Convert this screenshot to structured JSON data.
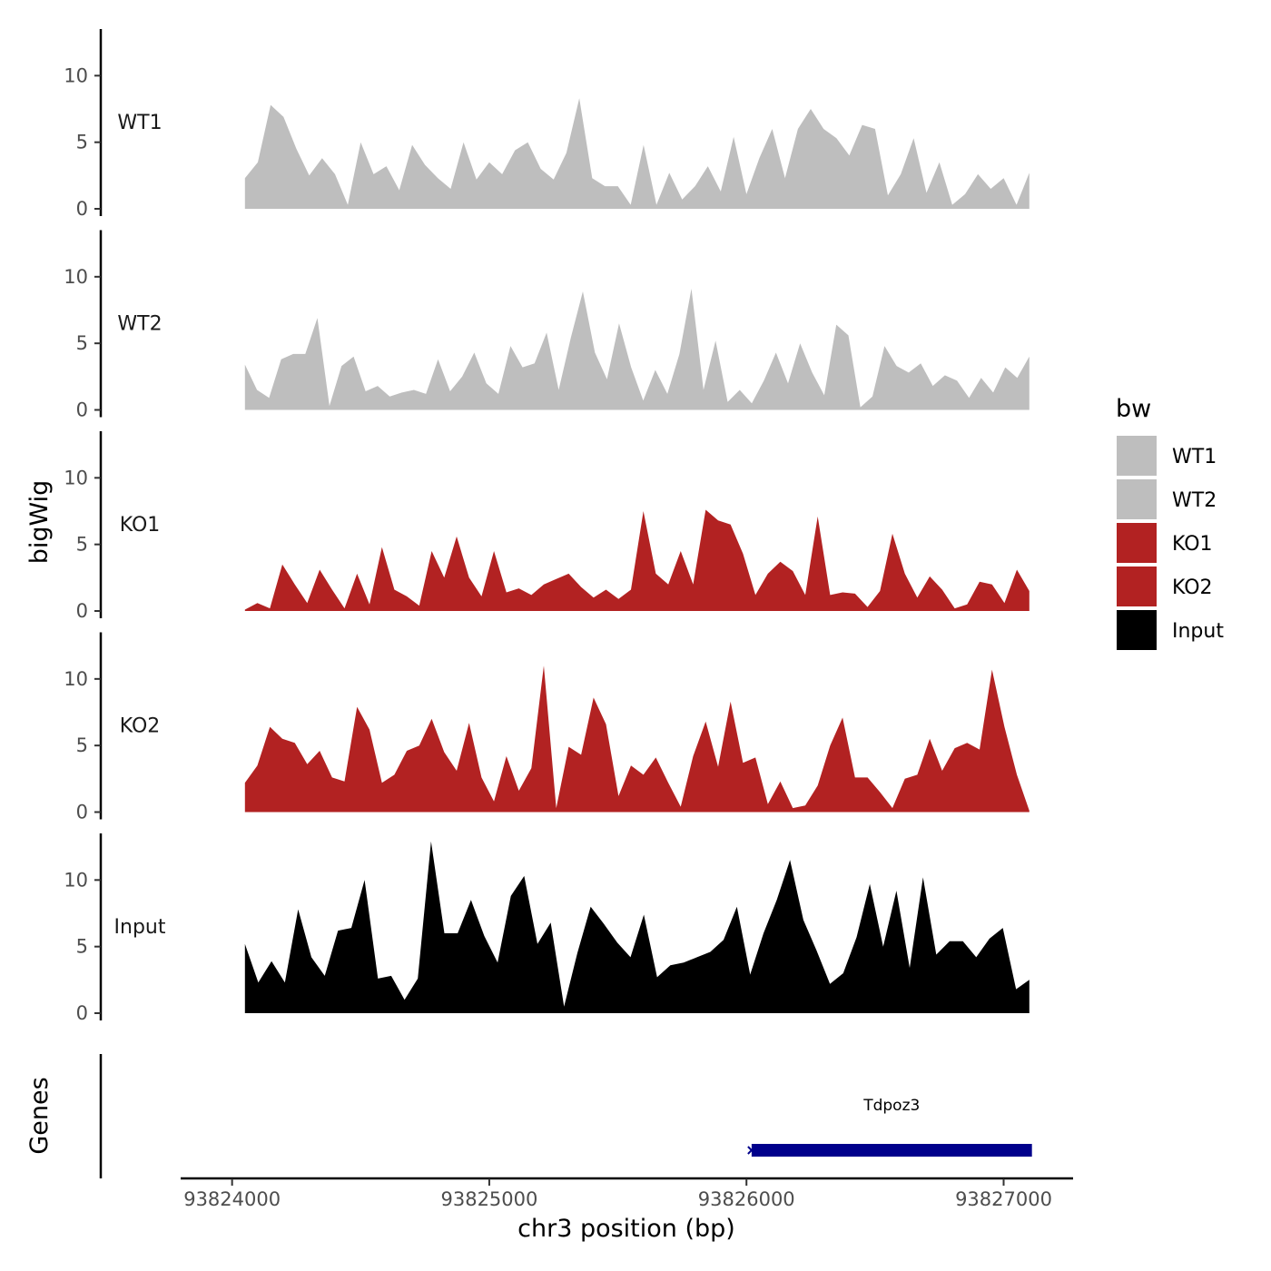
{
  "chart_data": {
    "type": "area",
    "title": "",
    "xlabel": "chr3 position (bp)",
    "ylabel": "bigWig",
    "genes_label": "Genes",
    "xlim": [
      93823800,
      93827270
    ],
    "ylim": [
      0,
      13.5
    ],
    "x_ticks": [
      93824000,
      93825000,
      93826000,
      93827000
    ],
    "x_tick_labels": [
      "93824000",
      "93825000",
      "93826000",
      "93827000"
    ],
    "y_ticks": [
      0,
      5,
      10
    ],
    "y_tick_labels": [
      "0",
      "5",
      "10"
    ],
    "x_start": 93824050,
    "x_end": 93827100,
    "legend": {
      "title": "bw",
      "position": "right",
      "entries": [
        {
          "label": "WT1",
          "color": "#bebebe"
        },
        {
          "label": "WT2",
          "color": "#bebebe"
        },
        {
          "label": "KO1",
          "color": "#b22222"
        },
        {
          "label": "KO2",
          "color": "#b22222"
        },
        {
          "label": "Input",
          "color": "#000000"
        }
      ]
    },
    "series": [
      {
        "name": "WT1",
        "color": "#bebebe",
        "values": [
          2.3,
          3.5,
          7.8,
          6.9,
          4.5,
          2.5,
          3.8,
          2.6,
          0.3,
          5,
          2.6,
          3.2,
          1.4,
          4.8,
          3.3,
          2.3,
          1.5,
          5,
          2.2,
          3.5,
          2.6,
          4.4,
          5,
          3,
          2.2,
          4.2,
          8.3,
          2.3,
          1.7,
          1.7,
          0.3,
          4.8,
          0.3,
          2.7,
          0.7,
          1.7,
          3.2,
          1.3,
          5.4,
          1.1,
          3.8,
          6,
          2.3,
          6,
          7.5,
          6,
          5.3,
          4,
          6.3,
          6,
          1,
          2.6,
          5.3,
          1.2,
          3.5,
          0.3,
          1.1,
          2.6,
          1.5,
          2.3,
          0.3,
          2.7
        ]
      },
      {
        "name": "WT2",
        "color": "#bebebe",
        "values": [
          3.4,
          1.5,
          0.9,
          3.8,
          4.2,
          4.2,
          6.9,
          0.3,
          3.3,
          4,
          1.4,
          1.8,
          1,
          1.3,
          1.5,
          1.2,
          3.8,
          1.4,
          2.5,
          4.3,
          2,
          1.2,
          4.8,
          3.2,
          3.5,
          5.8,
          1.5,
          5.4,
          8.9,
          4.3,
          2.3,
          6.5,
          3.2,
          0.7,
          3,
          1.2,
          4.2,
          9.1,
          1.5,
          5.2,
          0.6,
          1.5,
          0.5,
          2.2,
          4.3,
          2,
          5,
          2.8,
          1.1,
          6.4,
          5.6,
          0.2,
          1,
          4.8,
          3.3,
          2.8,
          3.5,
          1.8,
          2.6,
          2.2,
          0.9,
          2.4,
          1.3,
          3.2,
          2.4,
          4
        ]
      },
      {
        "name": "KO1",
        "color": "#b22222",
        "values": [
          0.1,
          0.6,
          0.2,
          3.5,
          2,
          0.6,
          3.1,
          1.6,
          0.2,
          2.8,
          0.5,
          4.8,
          1.6,
          1.1,
          0.4,
          4.5,
          2.5,
          5.6,
          2.5,
          1.1,
          4.5,
          1.4,
          1.7,
          1.2,
          2,
          2.4,
          2.8,
          1.8,
          1,
          1.6,
          0.9,
          1.6,
          7.5,
          2.8,
          2,
          4.5,
          2,
          7.6,
          6.8,
          6.5,
          4.3,
          1.2,
          2.8,
          3.7,
          3,
          1.2,
          7.1,
          1.2,
          1.4,
          1.3,
          0.3,
          1.5,
          5.8,
          2.8,
          1,
          2.6,
          1.6,
          0.2,
          0.5,
          2.2,
          2,
          0.6,
          3.1,
          1.5
        ]
      },
      {
        "name": "KO2",
        "color": "#b22222",
        "values": [
          2.2,
          3.5,
          6.4,
          5.5,
          5.2,
          3.6,
          4.6,
          2.6,
          2.3,
          7.9,
          6.2,
          2.2,
          2.8,
          4.6,
          5,
          7,
          4.5,
          3.1,
          6.7,
          2.6,
          0.8,
          4.2,
          1.6,
          3.3,
          11,
          0.3,
          4.9,
          4.3,
          8.6,
          6.6,
          1.2,
          3.5,
          2.8,
          4.1,
          2.2,
          0.4,
          4.2,
          6.8,
          3.4,
          8.3,
          3.7,
          4.1,
          0.6,
          2.3,
          0.3,
          0.5,
          2,
          5,
          7.1,
          2.6,
          2.6,
          1.5,
          0.3,
          2.5,
          2.8,
          5.5,
          3.1,
          4.8,
          5.2,
          4.7,
          10.7,
          6.4,
          2.8,
          0.1
        ]
      },
      {
        "name": "Input",
        "color": "#000000",
        "values": [
          5.2,
          2.3,
          3.9,
          2.3,
          7.8,
          4.2,
          2.8,
          6.2,
          6.4,
          10,
          2.6,
          2.8,
          1,
          2.6,
          12.9,
          6,
          6,
          8.5,
          5.8,
          3.8,
          8.8,
          10.3,
          5.2,
          6.8,
          0.5,
          4.5,
          8,
          6.7,
          5.3,
          4.2,
          7.4,
          2.7,
          3.6,
          3.8,
          4.2,
          4.6,
          5.5,
          8,
          2.9,
          6,
          8.5,
          11.5,
          7,
          4.7,
          2.2,
          3,
          5.7,
          9.7,
          5,
          9.2,
          3.4,
          10.2,
          4.4,
          5.4,
          5.4,
          4.2,
          5.6,
          6.4,
          1.8,
          2.5
        ]
      }
    ],
    "genes": [
      {
        "name": "Tdpoz3",
        "start": 93826020,
        "end": 93827110,
        "strand": "-",
        "color": "#00008b"
      }
    ]
  }
}
